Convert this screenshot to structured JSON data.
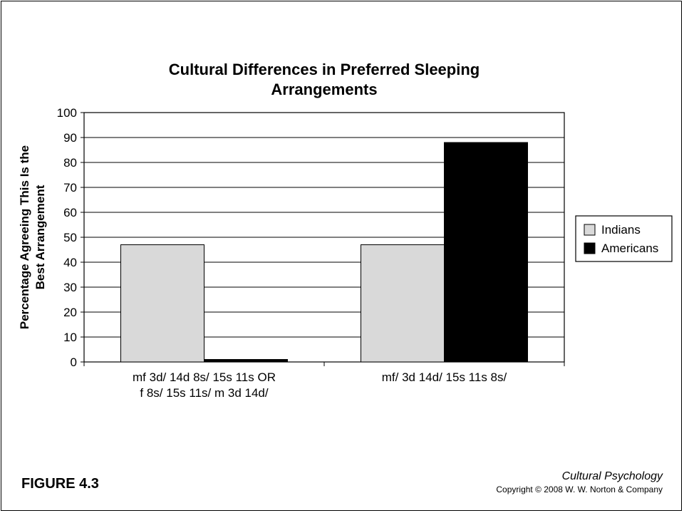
{
  "figure_label": "FIGURE 4.3",
  "book_title": "Cultural Psychology",
  "copyright": "Copyright © 2008 W. W. Norton & Company",
  "colors": {
    "indians": "#d9d9d9",
    "americans": "#000000"
  },
  "chart_data": {
    "type": "bar",
    "title": [
      "Cultural Differences in Preferred Sleeping",
      "Arrangements"
    ],
    "ylabel": [
      "Percentage Agreeing This Is the",
      "Best Arrangement"
    ],
    "xlabel": "",
    "ylim": [
      0,
      100
    ],
    "yticks": [
      0,
      10,
      20,
      30,
      40,
      50,
      60,
      70,
      80,
      90,
      100
    ],
    "grid": true,
    "legend": "right",
    "categories": [
      [
        "mf 3d/ 14d 8s/ 15s 11s OR",
        "f 8s/ 15s 11s/ m 3d 14d/"
      ],
      [
        "mf/ 3d 14d/ 15s 11s 8s/"
      ]
    ],
    "series": [
      {
        "name": "Indians",
        "values": [
          47,
          47
        ],
        "color": "#d9d9d9"
      },
      {
        "name": "Americans",
        "values": [
          1,
          88
        ],
        "color": "#000000"
      }
    ]
  }
}
